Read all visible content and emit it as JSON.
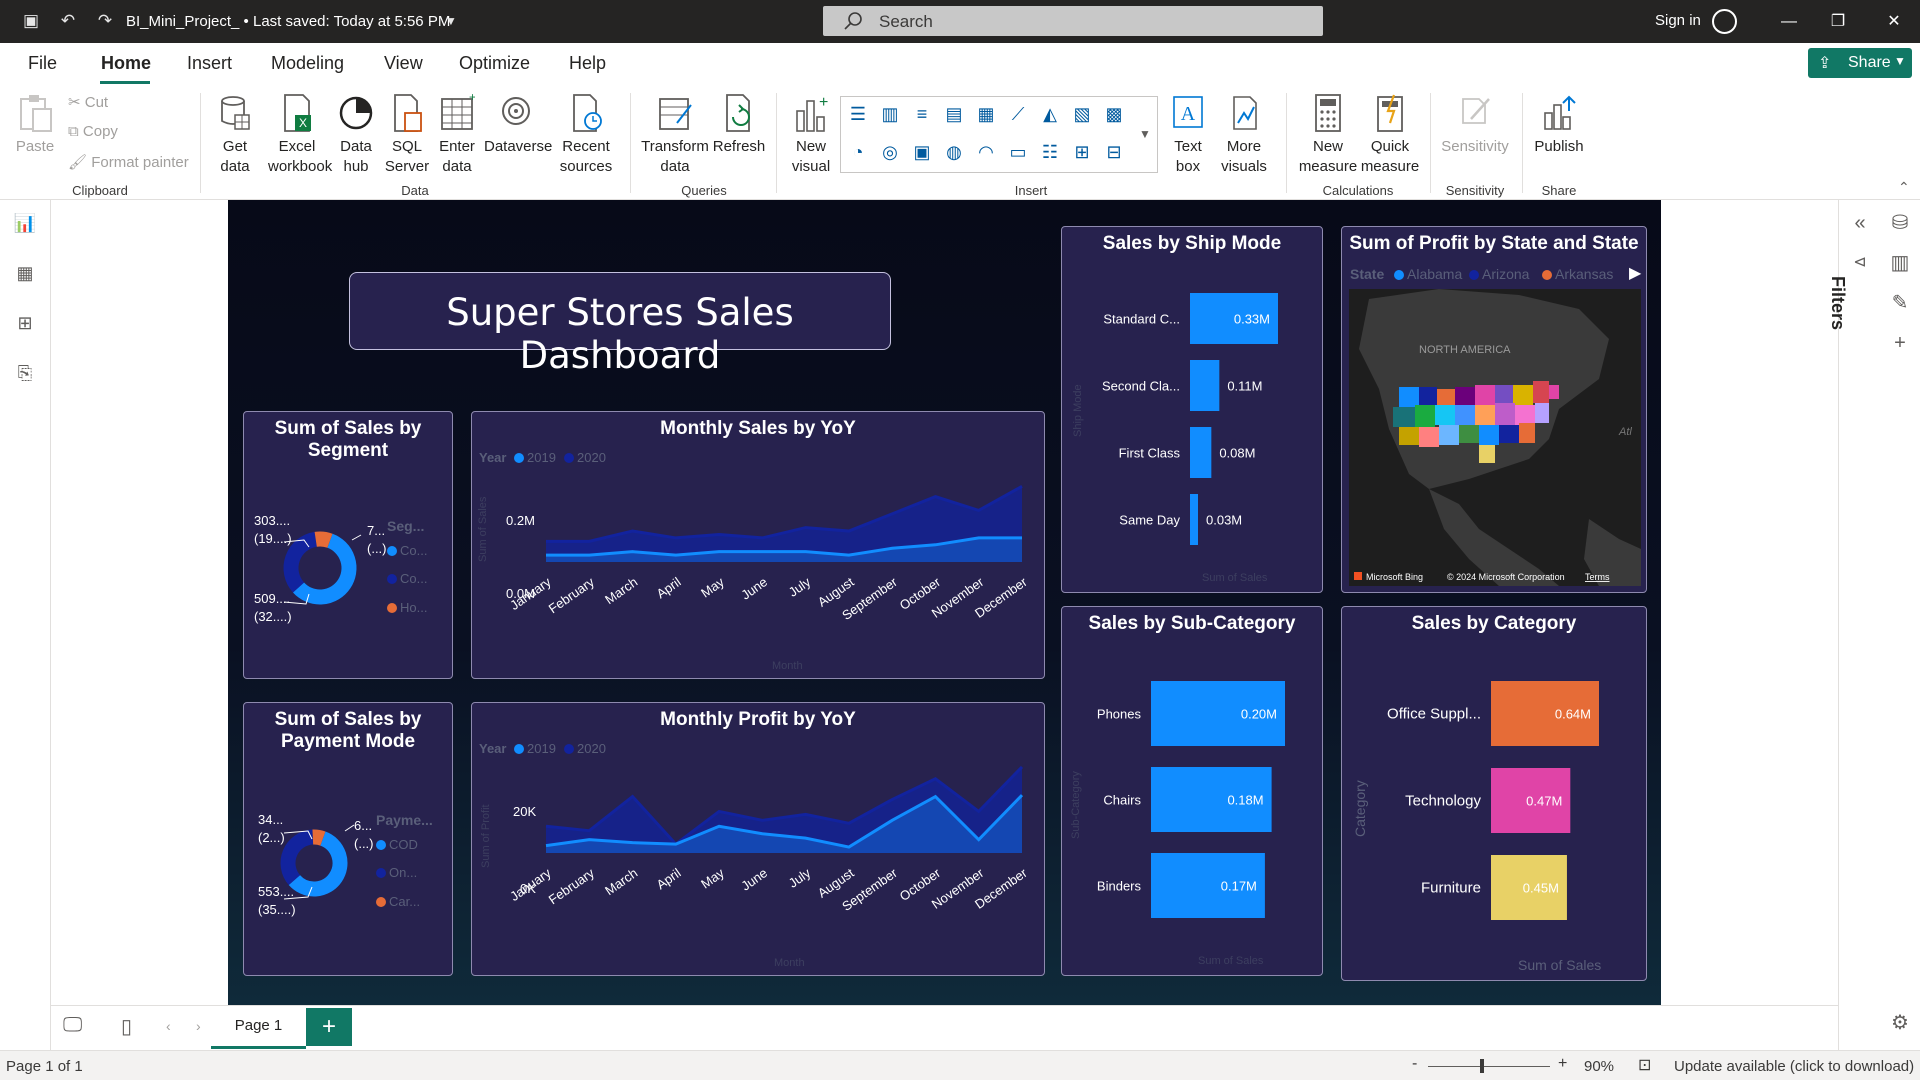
{
  "titlebar": {
    "doc_title": "BI_Mini_Project_ • Last saved: Today at 5:56 PM",
    "search_placeholder": "Search",
    "signin": "Sign in"
  },
  "menu": {
    "items": [
      "File",
      "Home",
      "Insert",
      "Modeling",
      "View",
      "Optimize",
      "Help"
    ],
    "share": "Share"
  },
  "ribbon": {
    "clipboard": {
      "paste": "Paste",
      "cut": "Cut",
      "copy": "Copy",
      "format_painter": "Format painter",
      "group": "Clipboard"
    },
    "data": {
      "get_data": "Get data",
      "excel": "Excel workbook",
      "data_hub": "Data hub",
      "sql": "SQL Server",
      "enter": "Enter data",
      "dataverse": "Dataverse",
      "recent": "Recent sources",
      "group": "Data"
    },
    "queries": {
      "transform": "Transform data",
      "refresh": "Refresh",
      "group": "Queries"
    },
    "insert": {
      "new_visual": "New visual",
      "text_box": "Text box",
      "more_visuals": "More visuals",
      "group": "Insert"
    },
    "calculations": {
      "new_measure": "New measure",
      "quick_measure": "Quick measure",
      "group": "Calculations"
    },
    "sensitivity": {
      "label": "Sensitivity",
      "group": "Sensitivity"
    },
    "share": {
      "publish": "Publish",
      "group": "Share"
    }
  },
  "right_pane": {
    "filters": "Filters"
  },
  "report": {
    "title": "Super Stores Sales Dashboard",
    "colors": {
      "series_2019": "#118dff",
      "series_2020": "#12239e",
      "bar": "#118dff",
      "orange": "#e66c37",
      "pink": "#e044a7",
      "yellow": "#e8d166"
    },
    "segment_donut": {
      "title": "Sum of Sales by Segment",
      "labels": [
        "303....",
        "(19....)",
        "7...",
        "(...)",
        "509....",
        "(32....)"
      ],
      "legend_title": "Seg...",
      "legend": [
        "Co...",
        "Co...",
        "Ho..."
      ]
    },
    "payment_donut": {
      "title": "Sum of Sales by Payment Mode",
      "labels": [
        "34...",
        "(2...)",
        "6...",
        "(...)",
        "553....",
        "(35....)"
      ],
      "legend_title": "Payme...",
      "legend": [
        "COD",
        "On...",
        "Car..."
      ]
    },
    "monthly_sales": {
      "title": "Monthly Sales by YoY",
      "legend_label": "Year",
      "legend": [
        "2019",
        "2020"
      ],
      "xlabel": "Month",
      "ylabel": "Sum of Sales",
      "yticks": [
        "0.2M",
        "0.0M"
      ]
    },
    "monthly_profit": {
      "title": "Monthly Profit by YoY",
      "legend_label": "Year",
      "legend": [
        "2019",
        "2020"
      ],
      "xlabel": "Month",
      "ylabel": "Sum of Profit",
      "yticks": [
        "20K",
        "0K"
      ]
    },
    "ship_mode": {
      "title": "Sales by Ship Mode",
      "ylabel": "Ship Mode",
      "xlabel": "Sum of Sales"
    },
    "map": {
      "title": "Sum of Profit by State and State",
      "legend_label": "State",
      "legend": [
        "Alabama",
        "Arizona",
        "Arkansas"
      ],
      "region_label": "NORTH AMERICA",
      "ocean_label": "Atl",
      "bing": "Microsoft Bing",
      "copyright": "© 2024 Microsoft Corporation",
      "terms": "Terms"
    },
    "sub_category": {
      "title": "Sales by Sub-Category",
      "ylabel": "Sub-Category",
      "xlabel": "Sum of Sales"
    },
    "category": {
      "title": "Sales by Category",
      "ylabel": "Category",
      "xlabel": "Sum of Sales"
    }
  },
  "chart_data": [
    {
      "type": "area",
      "title": "Monthly Sales by YoY",
      "xlabel": "Month",
      "ylabel": "Sum of Sales",
      "categories": [
        "January",
        "February",
        "March",
        "April",
        "May",
        "June",
        "July",
        "August",
        "September",
        "October",
        "November",
        "December"
      ],
      "series": [
        {
          "name": "2019",
          "values": [
            0.02,
            0.02,
            0.03,
            0.02,
            0.03,
            0.03,
            0.03,
            0.02,
            0.04,
            0.05,
            0.07,
            0.07
          ]
        },
        {
          "name": "2020",
          "values": [
            0.06,
            0.06,
            0.09,
            0.07,
            0.08,
            0.07,
            0.1,
            0.09,
            0.14,
            0.19,
            0.15,
            0.22
          ]
        }
      ],
      "ylim": [
        0,
        0.25
      ]
    },
    {
      "type": "area",
      "title": "Monthly Profit by YoY",
      "xlabel": "Month",
      "ylabel": "Sum of Profit",
      "categories": [
        "January",
        "February",
        "March",
        "April",
        "May",
        "June",
        "July",
        "August",
        "September",
        "October",
        "November",
        "December"
      ],
      "series": [
        {
          "name": "2019",
          "values": [
            2500,
            4500,
            3500,
            3000,
            9000,
            6500,
            5000,
            2000,
            11000,
            19000,
            4500,
            19500
          ]
        },
        {
          "name": "2020",
          "values": [
            9000,
            7500,
            19000,
            3000,
            14000,
            11000,
            13000,
            10000,
            18000,
            25000,
            14000,
            29000
          ]
        }
      ],
      "ylim": [
        0,
        32000
      ]
    },
    {
      "type": "pie",
      "title": "Sum of Sales by Segment",
      "categories": [
        "Co...",
        "Co...",
        "Ho..."
      ],
      "values": [
        509,
        303,
        70
      ]
    },
    {
      "type": "pie",
      "title": "Sum of Sales by Payment Mode",
      "categories": [
        "COD",
        "On...",
        "Car..."
      ],
      "values": [
        553,
        340,
        60
      ]
    },
    {
      "type": "bar",
      "title": "Sales by Ship Mode",
      "categories": [
        "Standard C...",
        "Second Cla...",
        "First Class",
        "Same Day"
      ],
      "values": [
        0.33,
        0.11,
        0.08,
        0.03
      ],
      "value_labels": [
        "0.33M",
        "0.11M",
        "0.08M",
        "0.03M"
      ]
    },
    {
      "type": "bar",
      "title": "Sales by Sub-Category",
      "categories": [
        "Phones",
        "Chairs",
        "Binders"
      ],
      "values": [
        0.2,
        0.18,
        0.17
      ],
      "value_labels": [
        "0.20M",
        "0.18M",
        "0.17M"
      ]
    },
    {
      "type": "bar",
      "title": "Sales by Category",
      "categories": [
        "Office Suppl...",
        "Technology",
        "Furniture"
      ],
      "values": [
        0.64,
        0.47,
        0.45
      ],
      "value_labels": [
        "0.64M",
        "0.47M",
        "0.45M"
      ]
    }
  ],
  "pagebar": {
    "page_tab": "Page 1",
    "add": "+"
  },
  "status": {
    "page": "Page 1 of 1",
    "zoom": "90%",
    "update": "Update available (click to download)"
  }
}
